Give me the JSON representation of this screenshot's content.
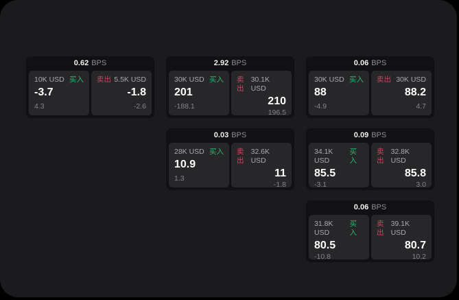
{
  "labels": {
    "buy": "买入",
    "sell": "卖出",
    "bps_unit": "BPS"
  },
  "colors": {
    "buy_green": "#31b46e",
    "sell_red": "#c9465e",
    "page_background": "#1b1b1d",
    "card_background": "#111113",
    "tile_background": "#27272a"
  },
  "cards": [
    {
      "col": 1,
      "row": 1,
      "bps": "0.62",
      "buy": {
        "amount": "10K USD",
        "price": "-3.7",
        "change": "4.3"
      },
      "sell": {
        "amount": "5.5K USD",
        "price": "-1.8",
        "change": "-2.6"
      }
    },
    {
      "col": 2,
      "row": 1,
      "bps": "2.92",
      "buy": {
        "amount": "30K USD",
        "price": "201",
        "change": "-188.1"
      },
      "sell": {
        "amount": "30.1K USD",
        "price": "210",
        "change": "196.5"
      }
    },
    {
      "col": 3,
      "row": 1,
      "bps": "0.06",
      "buy": {
        "amount": "30K USD",
        "price": "88",
        "change": "-4.9"
      },
      "sell": {
        "amount": "30K USD",
        "price": "88.2",
        "change": "4.7"
      }
    },
    {
      "col": 2,
      "row": 2,
      "bps": "0.03",
      "buy": {
        "amount": "28K USD",
        "price": "10.9",
        "change": "1.3"
      },
      "sell": {
        "amount": "32.6K USD",
        "price": "11",
        "change": "-1.8"
      }
    },
    {
      "col": 3,
      "row": 2,
      "bps": "0.09",
      "buy": {
        "amount": "34.1K USD",
        "price": "85.5",
        "change": "-3.1"
      },
      "sell": {
        "amount": "32.8K USD",
        "price": "85.8",
        "change": "3.0"
      }
    },
    {
      "col": 3,
      "row": 3,
      "bps": "0.06",
      "buy": {
        "amount": "31.8K USD",
        "price": "80.5",
        "change": "-10.8"
      },
      "sell": {
        "amount": "39.1K USD",
        "price": "80.7",
        "change": "10.2"
      }
    }
  ]
}
